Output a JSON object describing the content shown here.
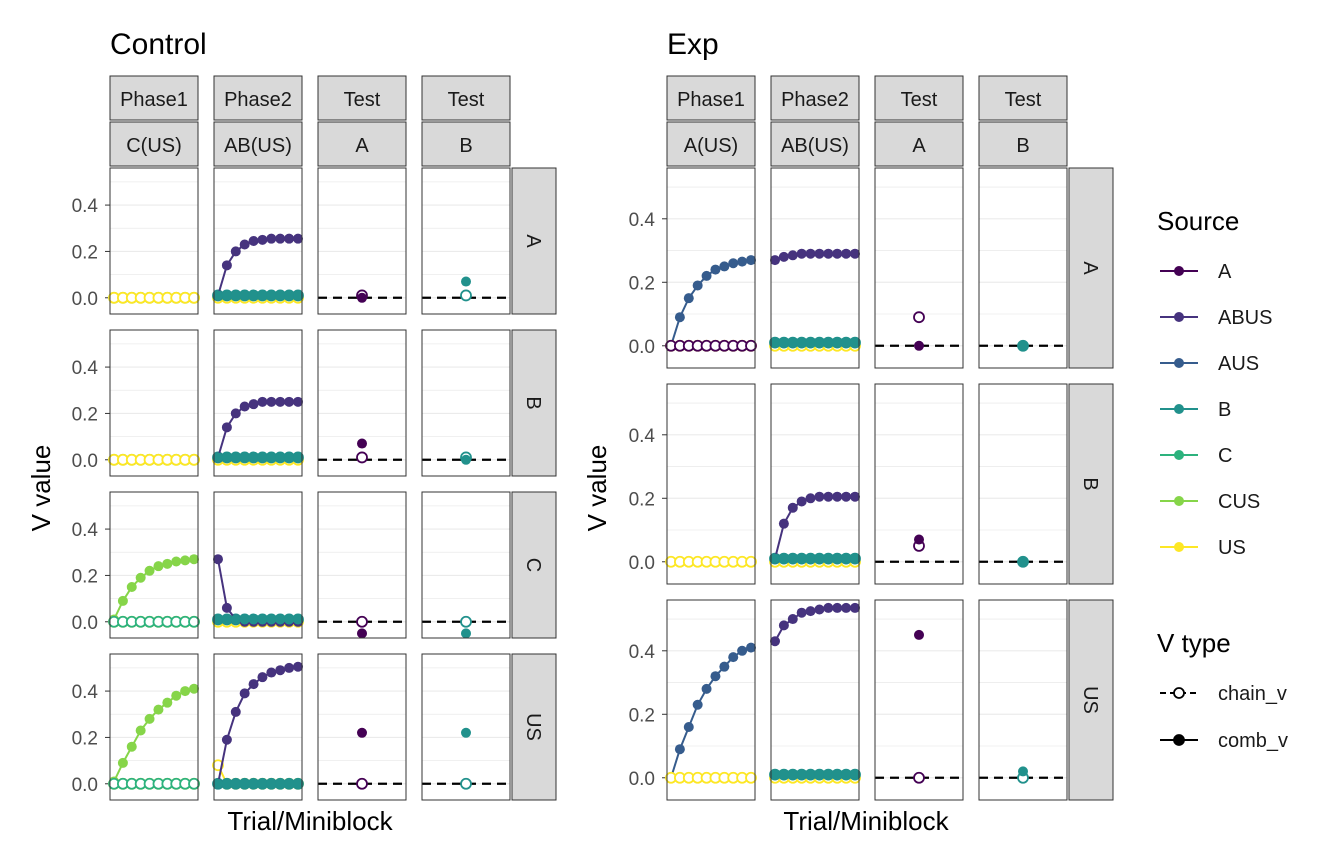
{
  "colors": {
    "A": "#440154",
    "ABUS": "#46337E",
    "AUS": "#365C8D",
    "B": "#21918C",
    "C": "#2DB27D",
    "CUS": "#86D549",
    "US": "#FDE725",
    "strip_fill": "#D9D9D9",
    "grid": "#EBEBEB",
    "panel_border": "#333333"
  },
  "axis": {
    "ylabel": "V value",
    "xlabel": "Trial/Miniblock",
    "yticks": [
      "0.0",
      "0.2",
      "0.4"
    ]
  },
  "legend": {
    "source_title": "Source",
    "source_items": [
      "A",
      "ABUS",
      "AUS",
      "B",
      "C",
      "CUS",
      "US"
    ],
    "vtype_title": "V type",
    "vtype_items": [
      "chain_v",
      "comb_v"
    ]
  },
  "chart_data": [
    {
      "type": "line",
      "title": "Control",
      "xlabel": "Trial/Miniblock",
      "ylabel": "V value",
      "ylim": [
        -0.07,
        0.56
      ],
      "grid": true,
      "legend_position": "right",
      "column_strips": [
        [
          "Phase1",
          "C(US)"
        ],
        [
          "Phase2",
          "AB(US)"
        ],
        [
          "Test",
          "A"
        ],
        [
          "Test",
          "B"
        ]
      ],
      "row_strips": [
        "A",
        "B",
        "C",
        "US"
      ],
      "phase_series": [
        {
          "series": {
            "CUS": [
              0,
              0,
              0,
              0,
              0,
              0,
              0,
              0,
              0,
              0
            ],
            "C": [
              0,
              0,
              0,
              0,
              0,
              0,
              0,
              0,
              0,
              0
            ],
            "US": [
              0,
              0,
              0,
              0,
              0,
              0,
              0,
              0,
              0,
              0
            ]
          },
          "chain": {
            "CUS": [
              0,
              0,
              0,
              0,
              0,
              0,
              0,
              0,
              0,
              0
            ],
            "US": [
              0,
              0,
              0,
              0,
              0,
              0,
              0,
              0,
              0,
              0
            ]
          }
        },
        {
          "series": {
            "CUS": [
              0,
              0,
              0,
              0,
              0,
              0,
              0,
              0,
              0,
              0
            ],
            "C": [
              0,
              0,
              0,
              0,
              0,
              0,
              0,
              0,
              0,
              0
            ],
            "US": [
              0,
              0,
              0,
              0,
              0,
              0,
              0,
              0,
              0,
              0
            ]
          },
          "chain": {
            "CUS": [
              0,
              0,
              0,
              0,
              0,
              0,
              0,
              0,
              0,
              0
            ],
            "US": [
              0,
              0,
              0,
              0,
              0,
              0,
              0,
              0,
              0,
              0
            ]
          }
        },
        {
          "series": {
            "CUS": [
              0.01,
              0.09,
              0.15,
              0.19,
              0.22,
              0.24,
              0.25,
              0.26,
              0.265,
              0.27
            ],
            "US": [
              0,
              0,
              0,
              0,
              0,
              0,
              0,
              0,
              0,
              0
            ]
          },
          "chain": {
            "US": [
              0,
              0,
              0,
              0,
              0,
              0,
              0,
              0,
              0,
              0
            ],
            "C": [
              0,
              0,
              0,
              0,
              0,
              0,
              0,
              0,
              0,
              0
            ]
          }
        },
        {
          "series": {
            "CUS": [
              0.01,
              0.09,
              0.16,
              0.23,
              0.28,
              0.32,
              0.35,
              0.38,
              0.4,
              0.41
            ],
            "C": [
              0,
              0,
              0,
              0,
              0,
              0,
              0,
              0,
              0,
              0
            ]
          },
          "chain": {
            "US": [
              0,
              0,
              0,
              0,
              0,
              0,
              0,
              0,
              0,
              0
            ],
            "C": [
              0,
              0,
              0,
              0,
              0,
              0,
              0,
              0,
              0,
              0
            ]
          }
        }
      ],
      "phase2_series": [
        {
          "series": {
            "ABUS": [
              0.01,
              0.14,
              0.2,
              0.23,
              0.245,
              0.25,
              0.255,
              0.255,
              0.255,
              0.255
            ],
            "B": [
              0.01,
              0.01,
              0.01,
              0.01,
              0.01,
              0.01,
              0.01,
              0.01,
              0.01,
              0.01
            ]
          },
          "chain": {
            "US": [
              0,
              0,
              0,
              0,
              0,
              0,
              0,
              0,
              0,
              0
            ],
            "B": [
              0.01,
              0.01,
              0.01,
              0.01,
              0.01,
              0.01,
              0.01,
              0.01,
              0.01,
              0.01
            ]
          }
        },
        {
          "series": {
            "ABUS": [
              0.01,
              0.14,
              0.2,
              0.23,
              0.24,
              0.25,
              0.25,
              0.25,
              0.25,
              0.25
            ],
            "B": [
              0.01,
              0.01,
              0.01,
              0.01,
              0.01,
              0.01,
              0.01,
              0.01,
              0.01,
              0.01
            ]
          },
          "chain": {
            "US": [
              0,
              0,
              0,
              0,
              0,
              0,
              0,
              0,
              0,
              0
            ],
            "B": [
              0.01,
              0.01,
              0.01,
              0.01,
              0.01,
              0.01,
              0.01,
              0.01,
              0.01,
              0.01
            ]
          }
        },
        {
          "series": {
            "ABUS": [
              0.27,
              0.06,
              0.01,
              0,
              0,
              0,
              0,
              0,
              0,
              0
            ],
            "B": [
              0.01,
              0.01,
              0.01,
              0.01,
              0.01,
              0.01,
              0.01,
              0.01,
              0.01,
              0.01
            ]
          },
          "chain": {
            "US": [
              0,
              0,
              0,
              0,
              0,
              0,
              0,
              0,
              0,
              0
            ],
            "B": [
              0.01,
              0.01,
              0.01,
              0.01,
              0.01,
              0.01,
              0.01,
              0.01,
              0.01,
              0.01
            ]
          }
        },
        {
          "series": {
            "ABUS": [
              0,
              0.19,
              0.31,
              0.39,
              0.43,
              0.46,
              0.48,
              0.49,
              0.5,
              0.505
            ],
            "B": [
              0,
              0,
              0,
              0,
              0,
              0,
              0,
              0,
              0,
              0
            ]
          },
          "chain": {
            "US": [
              0.08,
              0,
              0,
              0,
              0,
              0,
              0,
              0,
              0,
              0
            ],
            "B": [
              0,
              0,
              0,
              0,
              0,
              0,
              0,
              0,
              0,
              0
            ]
          }
        }
      ],
      "test_points": [
        {
          "A": {
            "chain": 0.01,
            "comb": 0.0
          },
          "B": {
            "chain": 0.01,
            "comb": 0.07
          }
        },
        {
          "A": {
            "chain": 0.01,
            "comb": 0.07
          },
          "B": {
            "chain": 0.01,
            "comb": 0.0
          }
        },
        {
          "A": {
            "chain": 0.0,
            "comb": -0.05
          },
          "B": {
            "chain": 0.0,
            "comb": -0.05
          }
        },
        {
          "A": {
            "chain": 0.0,
            "comb": 0.22
          },
          "B": {
            "chain": 0.0,
            "comb": 0.22
          }
        }
      ]
    },
    {
      "type": "line",
      "title": "Exp",
      "xlabel": "Trial/Miniblock",
      "ylabel": "V value",
      "ylim": [
        -0.07,
        0.56
      ],
      "grid": true,
      "legend_position": "right",
      "column_strips": [
        [
          "Phase1",
          "A(US)"
        ],
        [
          "Phase2",
          "AB(US)"
        ],
        [
          "Test",
          "A"
        ],
        [
          "Test",
          "B"
        ]
      ],
      "row_strips": [
        "A",
        "B",
        "US"
      ],
      "phase_series": [
        {
          "series": {
            "AUS": [
              0,
              0.09,
              0.15,
              0.19,
              0.22,
              0.24,
              0.25,
              0.26,
              0.265,
              0.27
            ],
            "A": [
              0,
              0,
              0,
              0,
              0,
              0,
              0,
              0,
              0,
              0
            ]
          },
          "chain": {
            "US": [
              0,
              0,
              0,
              0,
              0,
              0,
              0,
              0,
              0,
              0
            ],
            "A": [
              0,
              0,
              0,
              0,
              0,
              0,
              0,
              0,
              0,
              0
            ]
          }
        },
        {
          "series": {
            "AUS": [
              0,
              0,
              0,
              0,
              0,
              0,
              0,
              0,
              0,
              0
            ],
            "A": [
              0,
              0,
              0,
              0,
              0,
              0,
              0,
              0,
              0,
              0
            ]
          },
          "chain": {
            "US": [
              0,
              0,
              0,
              0,
              0,
              0,
              0,
              0,
              0,
              0
            ]
          }
        },
        {
          "series": {
            "AUS": [
              0,
              0.09,
              0.16,
              0.23,
              0.28,
              0.32,
              0.35,
              0.38,
              0.4,
              0.41
            ],
            "A": [
              0,
              0,
              0,
              0,
              0,
              0,
              0,
              0,
              0,
              0
            ]
          },
          "chain": {
            "US": [
              0,
              0,
              0,
              0,
              0,
              0,
              0,
              0,
              0,
              0
            ]
          }
        }
      ],
      "phase2_series": [
        {
          "series": {
            "ABUS": [
              0.27,
              0.28,
              0.285,
              0.29,
              0.29,
              0.29,
              0.29,
              0.29,
              0.29,
              0.29
            ],
            "B": [
              0.01,
              0.01,
              0.01,
              0.01,
              0.01,
              0.01,
              0.01,
              0.01,
              0.01,
              0.01
            ]
          },
          "chain": {
            "US": [
              0,
              0,
              0,
              0,
              0,
              0,
              0,
              0,
              0,
              0
            ],
            "B": [
              0.01,
              0.01,
              0.01,
              0.01,
              0.01,
              0.01,
              0.01,
              0.01,
              0.01,
              0.01
            ]
          }
        },
        {
          "series": {
            "ABUS": [
              0.01,
              0.12,
              0.17,
              0.19,
              0.2,
              0.205,
              0.205,
              0.205,
              0.205,
              0.205
            ],
            "B": [
              0.01,
              0.01,
              0.01,
              0.01,
              0.01,
              0.01,
              0.01,
              0.01,
              0.01,
              0.01
            ]
          },
          "chain": {
            "US": [
              0,
              0,
              0,
              0,
              0,
              0,
              0,
              0,
              0,
              0
            ],
            "B": [
              0.01,
              0.01,
              0.01,
              0.01,
              0.01,
              0.01,
              0.01,
              0.01,
              0.01,
              0.01
            ]
          }
        },
        {
          "series": {
            "ABUS": [
              0.43,
              0.48,
              0.5,
              0.52,
              0.525,
              0.53,
              0.535,
              0.535,
              0.535,
              0.535
            ],
            "B": [
              0.01,
              0.01,
              0.01,
              0.01,
              0.01,
              0.01,
              0.01,
              0.01,
              0.01,
              0.01
            ]
          },
          "chain": {
            "US": [
              0,
              0,
              0,
              0,
              0,
              0,
              0,
              0,
              0,
              0
            ],
            "B": [
              0.01,
              0.01,
              0.01,
              0.01,
              0.01,
              0.01,
              0.01,
              0.01,
              0.01,
              0.01
            ]
          }
        }
      ],
      "test_points": [
        {
          "A": {
            "chain": 0.09,
            "comb": 0.0
          },
          "B": {
            "chain": 0.0,
            "comb": 0.0
          }
        },
        {
          "A": {
            "chain": 0.05,
            "comb": 0.07
          },
          "B": {
            "chain": 0.0,
            "comb": 0.0
          }
        },
        {
          "A": {
            "chain": 0.0,
            "comb": 0.45
          },
          "B": {
            "chain": 0.0,
            "comb": 0.02
          }
        }
      ]
    }
  ]
}
